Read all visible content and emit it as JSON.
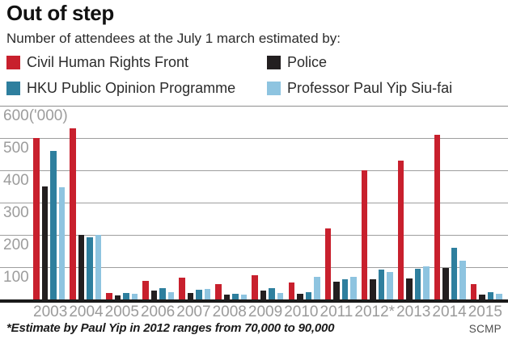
{
  "title": "Out of step",
  "subtitle": "Number of attendees at the July 1 march estimated by:",
  "legend": [
    {
      "label": "Civil Human Rights Front",
      "color": "#c8202d"
    },
    {
      "label": "Police",
      "color": "#231f20"
    },
    {
      "label": "HKU Public Opinion Programme",
      "color": "#2e7f9e"
    },
    {
      "label": "Professor Paul Yip Siu-fai",
      "color": "#8ec4e0"
    }
  ],
  "chart_data": {
    "type": "bar",
    "title": "Out of step",
    "subtitle": "Number of attendees at the July 1 march estimated by:",
    "unit": "'000",
    "categories": [
      "2003",
      "2004",
      "2005",
      "2006",
      "2007",
      "2008",
      "2009",
      "2010",
      "2011",
      "2012*",
      "2013",
      "2014",
      "2015"
    ],
    "series": [
      {
        "name": "Civil Human Rights Front",
        "color": "#c8202d",
        "values": [
          500,
          530,
          21,
          58,
          68,
          47,
          76,
          52,
          220,
          400,
          430,
          510,
          48
        ]
      },
      {
        "name": "Police",
        "color": "#231f20",
        "values": [
          350,
          200,
          12,
          28,
          19,
          14,
          27,
          18,
          54,
          62,
          64,
          98,
          16
        ]
      },
      {
        "name": "HKU Public Opinion Programme",
        "color": "#2e7f9e",
        "values": [
          460,
          193,
          21,
          36,
          31,
          17,
          34,
          22,
          62,
          92,
          96,
          160,
          23
        ]
      },
      {
        "name": "Professor Paul Yip Siu-fai",
        "color": "#8ec4e0",
        "values": [
          348,
          200,
          17,
          23,
          33,
          15,
          20,
          70,
          70,
          86,
          102,
          119,
          18
        ]
      }
    ],
    "ylim": [
      0,
      600
    ],
    "yticks": [
      {
        "value": 600,
        "label": "600('000)"
      },
      {
        "value": 500,
        "label": "500"
      },
      {
        "value": 400,
        "label": "400"
      },
      {
        "value": 300,
        "label": "300"
      },
      {
        "value": 200,
        "label": "200"
      },
      {
        "value": 100,
        "label": "100"
      }
    ],
    "grid": true,
    "legend_position": "top"
  },
  "footnote": "*Estimate by Paul Yip in 2012 ranges from 70,000 to 90,000",
  "source": "SCMP",
  "colors": {
    "gridline": "#9e9e9e",
    "baseline": "#1a1a1a",
    "tick_text": "#9b9b9b"
  }
}
